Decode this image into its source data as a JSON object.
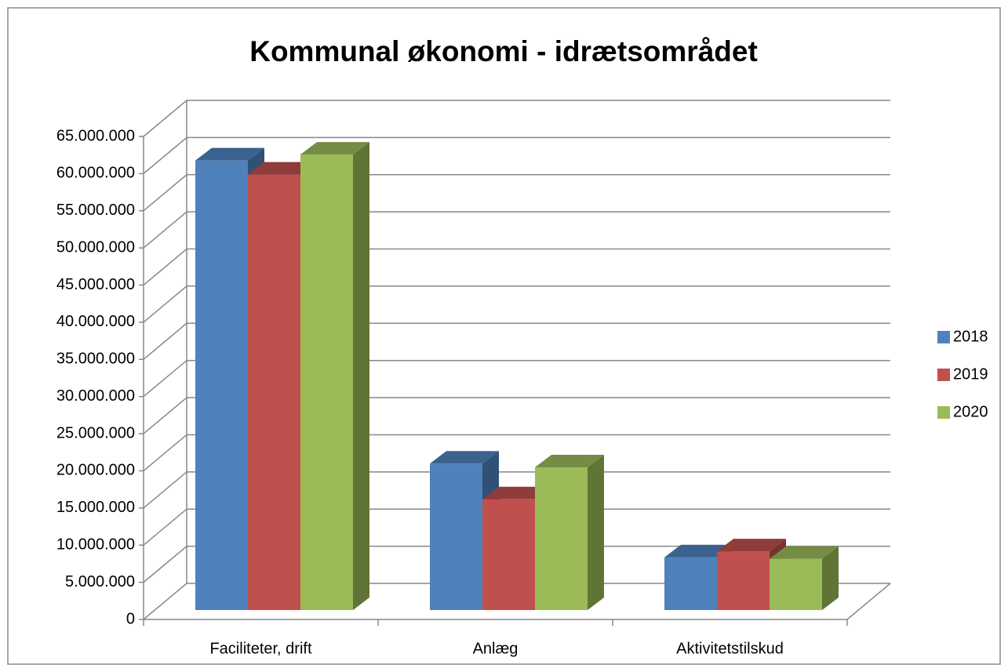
{
  "chart_data": {
    "type": "bar3d",
    "title": "Kommunal økonomi - idrætsområdet",
    "categories": [
      "Faciliteter, drift",
      "Anlæg",
      "Aktivitetstilskud"
    ],
    "series": [
      {
        "name": "2018",
        "color": "#4f81bd",
        "values": [
          60500000,
          19700000,
          7100000
        ]
      },
      {
        "name": "2019",
        "color": "#c0504d",
        "values": [
          58600000,
          14900000,
          7900000
        ]
      },
      {
        "name": "2020",
        "color": "#9bbb59",
        "values": [
          61300000,
          19200000,
          6900000
        ]
      }
    ],
    "ylim": [
      0,
      65000000
    ],
    "yticks": [
      0,
      {
        "value": 5000000,
        "label": "5.000.000"
      },
      {
        "value": 10000000,
        "label": "10.000.000"
      },
      {
        "value": 15000000,
        "label": "15.000.000"
      },
      {
        "value": 20000000,
        "label": "20.000.000"
      },
      {
        "value": 25000000,
        "label": "25.000.000"
      },
      {
        "value": 30000000,
        "label": "30.000.000"
      },
      {
        "value": 35000000,
        "label": "35.000.000"
      },
      {
        "value": 40000000,
        "label": "40.000.000"
      },
      {
        "value": 45000000,
        "label": "45.000.000"
      },
      {
        "value": 50000000,
        "label": "50.000.000"
      },
      {
        "value": 55000000,
        "label": "55.000.000"
      },
      {
        "value": 60000000,
        "label": "60.000.000"
      },
      {
        "value": 65000000,
        "label": "65.000.000"
      }
    ],
    "grid": true,
    "legend": "right"
  }
}
